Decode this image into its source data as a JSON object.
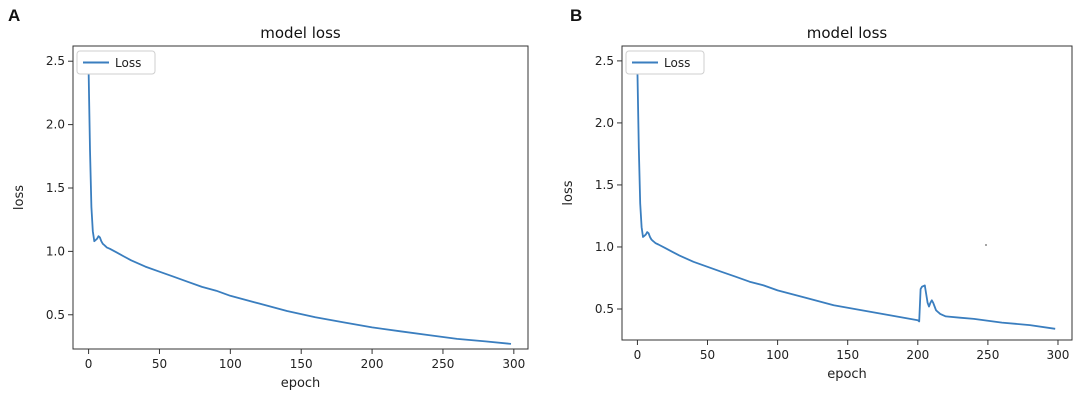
{
  "colors": {
    "series": "#3a7ebf"
  },
  "chart_data": [
    {
      "panel_letter": "A",
      "type": "line",
      "title": "model loss",
      "xlabel": "epoch",
      "ylabel": "loss",
      "xlim": [
        -11,
        310
      ],
      "ylim": [
        0.23,
        2.62
      ],
      "xticks": [
        0,
        50,
        100,
        150,
        200,
        250,
        300
      ],
      "yticks": [
        0.5,
        1.0,
        1.5,
        2.0,
        2.5
      ],
      "xtick_labels": [
        "0",
        "50",
        "100",
        "150",
        "200",
        "250",
        "300"
      ],
      "ytick_labels": [
        "0.5",
        "1.0",
        "1.5",
        "2.0",
        "2.5"
      ],
      "legend": {
        "position": "top-left"
      },
      "grid": false,
      "series": [
        {
          "name": "Loss",
          "x": [
            0,
            1,
            2,
            3,
            4,
            5,
            6,
            7,
            8,
            9,
            10,
            11,
            12,
            13,
            15,
            20,
            25,
            30,
            40,
            50,
            60,
            70,
            80,
            90,
            100,
            120,
            140,
            160,
            180,
            200,
            220,
            240,
            260,
            280,
            298
          ],
          "y": [
            2.43,
            1.8,
            1.35,
            1.16,
            1.08,
            1.09,
            1.1,
            1.12,
            1.11,
            1.08,
            1.06,
            1.05,
            1.04,
            1.03,
            1.02,
            0.99,
            0.96,
            0.93,
            0.88,
            0.84,
            0.8,
            0.76,
            0.72,
            0.69,
            0.65,
            0.59,
            0.53,
            0.48,
            0.44,
            0.4,
            0.37,
            0.34,
            0.31,
            0.29,
            0.27
          ]
        }
      ]
    },
    {
      "panel_letter": "B",
      "type": "line",
      "title": "model loss",
      "xlabel": "epoch",
      "ylabel": "loss",
      "xlim": [
        -11,
        310
      ],
      "ylim": [
        0.25,
        2.62
      ],
      "xticks": [
        0,
        50,
        100,
        150,
        200,
        250,
        300
      ],
      "yticks": [
        0.5,
        1.0,
        1.5,
        2.0,
        2.5
      ],
      "xtick_labels": [
        "0",
        "50",
        "100",
        "150",
        "200",
        "250",
        "300"
      ],
      "ytick_labels": [
        "0.5",
        "1.0",
        "1.5",
        "2.0",
        "2.5"
      ],
      "legend": {
        "position": "top-left"
      },
      "grid": false,
      "series": [
        {
          "name": "Loss",
          "x": [
            0,
            1,
            2,
            3,
            4,
            5,
            6,
            7,
            8,
            9,
            10,
            11,
            12,
            13,
            15,
            20,
            25,
            30,
            40,
            50,
            60,
            70,
            80,
            90,
            100,
            120,
            140,
            160,
            180,
            200,
            201,
            202,
            203,
            205,
            206,
            207,
            208,
            209,
            210,
            211,
            212,
            213,
            214,
            215,
            216,
            218,
            220,
            230,
            240,
            260,
            280,
            298
          ],
          "y": [
            2.43,
            1.8,
            1.35,
            1.16,
            1.08,
            1.09,
            1.1,
            1.12,
            1.11,
            1.08,
            1.06,
            1.05,
            1.04,
            1.03,
            1.02,
            0.99,
            0.96,
            0.93,
            0.88,
            0.84,
            0.8,
            0.76,
            0.72,
            0.69,
            0.65,
            0.59,
            0.53,
            0.49,
            0.45,
            0.41,
            0.4,
            0.66,
            0.68,
            0.69,
            0.62,
            0.55,
            0.52,
            0.55,
            0.57,
            0.55,
            0.52,
            0.49,
            0.48,
            0.47,
            0.46,
            0.45,
            0.44,
            0.43,
            0.42,
            0.39,
            0.37,
            0.34
          ]
        }
      ]
    }
  ]
}
